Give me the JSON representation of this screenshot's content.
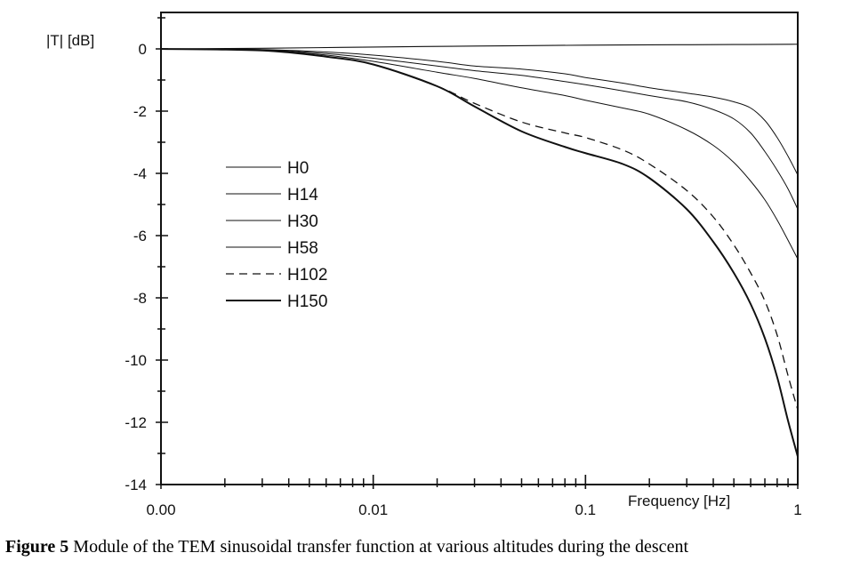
{
  "figure_caption": {
    "label": "Figure 5",
    "text": "Module of the TEM sinusoidal transfer function at various altitudes during the descent"
  },
  "chart_data": {
    "type": "line",
    "title": "",
    "xlabel": "Frequency [Hz]",
    "ylabel": "|T| [dB]",
    "xscale": "log",
    "xlim": [
      0.001,
      1
    ],
    "ylim": [
      -14,
      1
    ],
    "x_tick_labels": [
      {
        "value": 0.001,
        "label": "0.00"
      },
      {
        "value": 0.01,
        "label": "0.01"
      },
      {
        "value": 0.1,
        "label": "0.1"
      },
      {
        "value": 1,
        "label": "1"
      }
    ],
    "y_tick_labels": [
      {
        "value": 0,
        "label": "0"
      },
      {
        "value": -2,
        "label": "-2"
      },
      {
        "value": -4,
        "label": "-4"
      },
      {
        "value": -6,
        "label": "-6"
      },
      {
        "value": -8,
        "label": "-8"
      },
      {
        "value": -10,
        "label": "-10"
      },
      {
        "value": -12,
        "label": "-12"
      },
      {
        "value": -14,
        "label": "-14"
      }
    ],
    "grid": false,
    "legend_position": "left",
    "series": [
      {
        "name": "H0",
        "style": "solid",
        "width": 1.1,
        "x": [
          0.001,
          0.003,
          0.01,
          0.03,
          0.1,
          0.2,
          0.5,
          1
        ],
        "y": [
          0,
          0.02,
          0.06,
          0.09,
          0.12,
          0.13,
          0.14,
          0.15
        ]
      },
      {
        "name": "H14",
        "style": "solid",
        "width": 1.0,
        "x": [
          0.001,
          0.003,
          0.006,
          0.01,
          0.02,
          0.03,
          0.05,
          0.08,
          0.1,
          0.15,
          0.2,
          0.3,
          0.4,
          0.5,
          0.6,
          0.7,
          0.8,
          0.9,
          1
        ],
        "y": [
          0,
          -0.02,
          -0.1,
          -0.2,
          -0.4,
          -0.55,
          -0.65,
          -0.8,
          -0.92,
          -1.1,
          -1.25,
          -1.42,
          -1.55,
          -1.7,
          -1.9,
          -2.3,
          -2.85,
          -3.45,
          -4.05
        ]
      },
      {
        "name": "H30",
        "style": "solid",
        "width": 1.0,
        "x": [
          0.001,
          0.003,
          0.006,
          0.01,
          0.02,
          0.03,
          0.05,
          0.08,
          0.1,
          0.15,
          0.2,
          0.3,
          0.4,
          0.5,
          0.6,
          0.7,
          0.8,
          0.9,
          1
        ],
        "y": [
          0,
          -0.03,
          -0.15,
          -0.3,
          -0.55,
          -0.7,
          -0.85,
          -1.05,
          -1.15,
          -1.35,
          -1.5,
          -1.7,
          -1.95,
          -2.25,
          -2.7,
          -3.3,
          -3.9,
          -4.5,
          -5.15
        ]
      },
      {
        "name": "H58",
        "style": "solid",
        "width": 1.0,
        "x": [
          0.001,
          0.003,
          0.006,
          0.01,
          0.02,
          0.03,
          0.05,
          0.08,
          0.1,
          0.15,
          0.2,
          0.3,
          0.4,
          0.5,
          0.6,
          0.7,
          0.8,
          0.9,
          1
        ],
        "y": [
          0,
          -0.04,
          -0.2,
          -0.4,
          -0.75,
          -0.95,
          -1.25,
          -1.5,
          -1.65,
          -1.9,
          -2.1,
          -2.6,
          -3.1,
          -3.65,
          -4.25,
          -4.85,
          -5.5,
          -6.15,
          -6.75
        ]
      },
      {
        "name": "H102",
        "style": "dashed",
        "width": 1.3,
        "x": [
          0.001,
          0.003,
          0.006,
          0.01,
          0.02,
          0.03,
          0.05,
          0.08,
          0.1,
          0.15,
          0.2,
          0.3,
          0.4,
          0.5,
          0.6,
          0.7,
          0.8,
          0.9,
          1
        ],
        "y": [
          0,
          -0.05,
          -0.25,
          -0.5,
          -1.2,
          -1.75,
          -2.35,
          -2.7,
          -2.85,
          -3.25,
          -3.7,
          -4.55,
          -5.4,
          -6.3,
          -7.2,
          -8.1,
          -9.2,
          -10.5,
          -11.6
        ]
      },
      {
        "name": "H150",
        "style": "solid",
        "width": 2.0,
        "x": [
          0.001,
          0.003,
          0.006,
          0.01,
          0.02,
          0.03,
          0.05,
          0.08,
          0.1,
          0.15,
          0.2,
          0.3,
          0.4,
          0.5,
          0.6,
          0.7,
          0.8,
          0.9,
          1
        ],
        "y": [
          0,
          -0.05,
          -0.25,
          -0.5,
          -1.2,
          -1.85,
          -2.65,
          -3.15,
          -3.35,
          -3.7,
          -4.15,
          -5.15,
          -6.2,
          -7.2,
          -8.2,
          -9.3,
          -10.55,
          -11.95,
          -13.1
        ]
      }
    ]
  }
}
